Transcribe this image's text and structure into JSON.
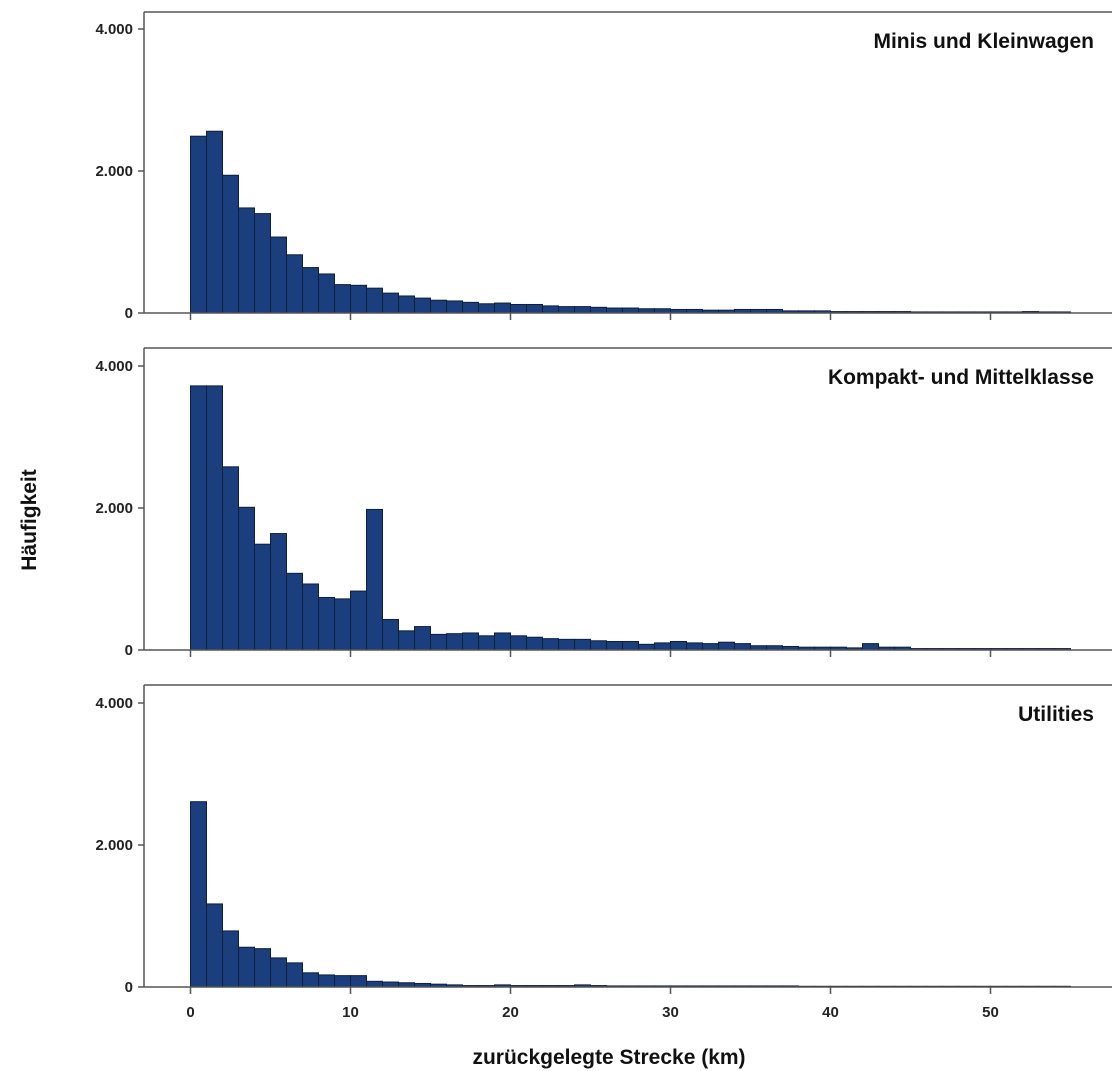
{
  "colors": {
    "bar_fill": "#1b3f7c",
    "bar_stroke": "#0d1f40",
    "axis": "#555555"
  },
  "chart_data": {
    "type": "bar",
    "subtype": "histogram-panels",
    "xlabel": "zurückgelegte Strecke (km)",
    "ylabel": "Häufigkeit",
    "x_range": [
      -3,
      57
    ],
    "x_ticks": [
      0,
      10,
      20,
      30,
      40,
      50
    ],
    "x_tick_labels": [
      "0",
      "10",
      "20",
      "30",
      "40",
      "50"
    ],
    "y_range": [
      0,
      4200
    ],
    "y_ticks": [
      0,
      2000,
      4000
    ],
    "y_tick_labels": [
      "0",
      "2.000",
      "4.000"
    ],
    "bin_width": 1,
    "bin_start": 0,
    "grid": false,
    "panels": [
      {
        "title": "Minis und Kleinwagen",
        "values": [
          2490,
          2560,
          1940,
          1480,
          1400,
          1070,
          820,
          640,
          550,
          400,
          390,
          350,
          280,
          240,
          210,
          180,
          170,
          150,
          130,
          140,
          120,
          120,
          100,
          90,
          90,
          80,
          70,
          70,
          60,
          60,
          50,
          50,
          40,
          40,
          50,
          50,
          50,
          30,
          30,
          30,
          20,
          20,
          20,
          20,
          20,
          15,
          15,
          15,
          15,
          15,
          15,
          15,
          20,
          15,
          15
        ]
      },
      {
        "title": "Kompakt- und Mittelklasse",
        "values": [
          3720,
          3720,
          2580,
          2010,
          1490,
          1640,
          1080,
          930,
          740,
          720,
          830,
          1980,
          430,
          270,
          330,
          220,
          230,
          240,
          200,
          240,
          200,
          180,
          160,
          150,
          150,
          130,
          120,
          120,
          80,
          100,
          120,
          100,
          90,
          110,
          90,
          60,
          60,
          50,
          40,
          40,
          40,
          30,
          90,
          40,
          40,
          20,
          20,
          20,
          20,
          20,
          20,
          20,
          20,
          20,
          20
        ]
      },
      {
        "title": "Utilities",
        "values": [
          2610,
          1170,
          790,
          560,
          540,
          410,
          340,
          200,
          170,
          160,
          160,
          80,
          70,
          60,
          50,
          40,
          30,
          20,
          20,
          30,
          20,
          20,
          20,
          20,
          30,
          20,
          15,
          15,
          15,
          15,
          15,
          15,
          15,
          15,
          15,
          15,
          15,
          15,
          10,
          10,
          10,
          10,
          10,
          10,
          10,
          10,
          10,
          10,
          10,
          10,
          10,
          10,
          10,
          10,
          10
        ]
      }
    ]
  }
}
